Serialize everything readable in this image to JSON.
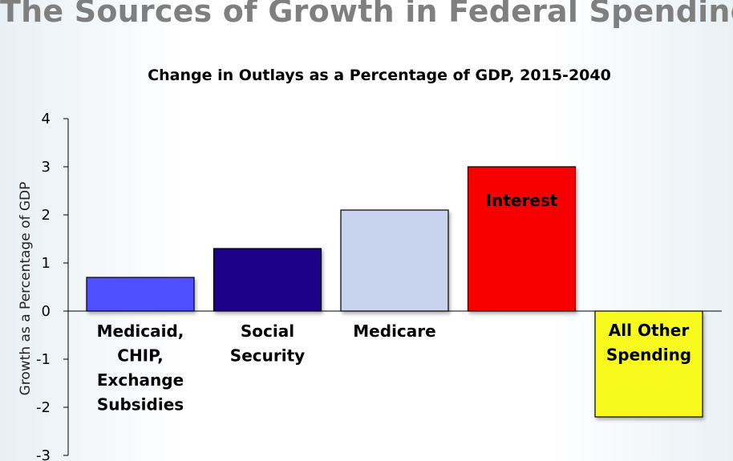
{
  "slide_title": "The Sources of Growth in Federal Spending",
  "chart_data": {
    "type": "bar",
    "title": "Change in Outlays as a Percentage of GDP, 2015-2040",
    "ylabel": "Growth as a Percentage of GDP",
    "xlabel": "",
    "ylim": [
      -3,
      4
    ],
    "yticks": [
      4,
      3,
      2,
      1,
      0,
      -1,
      -2,
      -3
    ],
    "grid": false,
    "categories": [
      [
        "Medicaid,",
        "CHIP,",
        "Exchange",
        "Subsidies"
      ],
      [
        "Social",
        "Security"
      ],
      [
        "Medicare"
      ],
      [
        "Interest"
      ],
      [
        "All Other",
        "Spending"
      ]
    ],
    "values": [
      0.7,
      1.3,
      2.1,
      3.0,
      -2.2
    ],
    "colors": [
      "#5050ff",
      "#1a0088",
      "#c8d4ee",
      "#f80505",
      "#f7fa1f"
    ]
  }
}
